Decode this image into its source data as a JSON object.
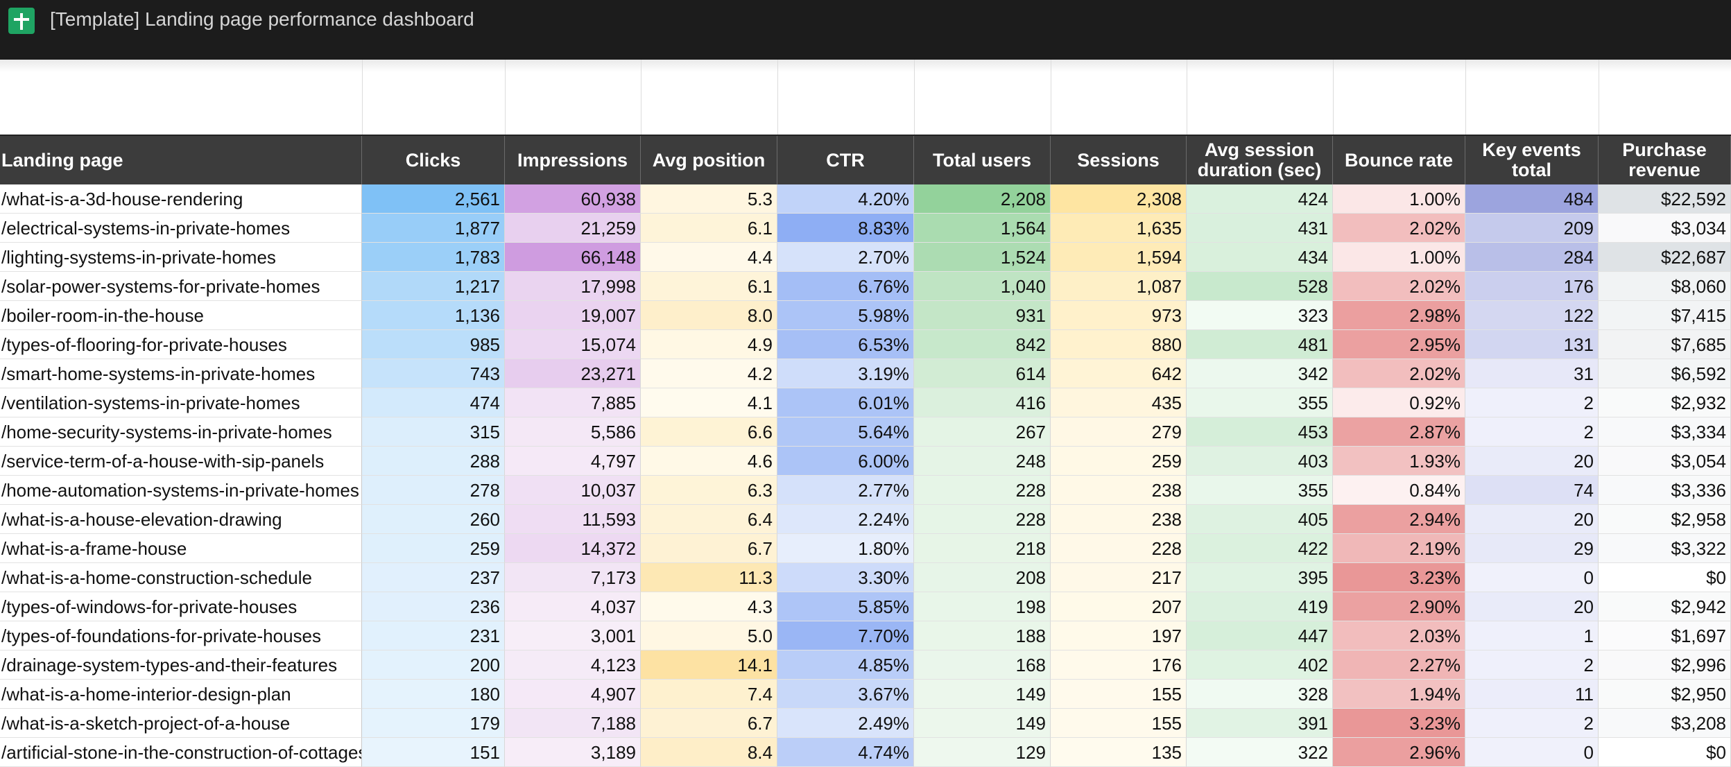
{
  "window": {
    "title": "[Template] Landing page performance dashboard",
    "app_icon": "sheets-icon"
  },
  "colors": {
    "header_bg": "#3c3c3c",
    "title_bar_bg": "#1c1c1c",
    "clicks_scale": [
      "#e8f4fd",
      "#7fc1f6"
    ],
    "impressions_scale": [
      "#f7eef8",
      "#cf9ce0"
    ],
    "avg_position_scale": [
      "#fffbee",
      "#fde2a3"
    ],
    "ctr_scale": [
      "#e7eefc",
      "#8eaef4"
    ],
    "total_users_scale": [
      "#eef8ee",
      "#93d29b"
    ],
    "sessions_scale": [
      "#fffbee",
      "#fee5a2"
    ],
    "avg_session_scale": [
      "#f3fbf4",
      "#c8e9cd"
    ],
    "bounce_rate_scale": [
      "#fdf1f1",
      "#e99797"
    ],
    "key_events_scale": [
      "#f0f1fb",
      "#9ca4de"
    ],
    "purchase_revenue_scale": [
      "#ffffff",
      "#dfe3e6"
    ]
  },
  "columns": [
    "Landing page",
    "Clicks",
    "Impressions",
    "Avg position",
    "CTR",
    "Total users",
    "Sessions",
    "Avg session duration (sec)",
    "Bounce rate",
    "Key events total",
    "Purchase revenue"
  ],
  "rows": [
    [
      "/what-is-a-3d-house-rendering",
      "2,561",
      "60,938",
      "5.3",
      "4.20%",
      "2,208",
      "2,308",
      "424",
      "1.00%",
      "484",
      "$22,592"
    ],
    [
      "/electrical-systems-in-private-homes",
      "1,877",
      "21,259",
      "6.1",
      "8.83%",
      "1,564",
      "1,635",
      "431",
      "2.02%",
      "209",
      "$3,034"
    ],
    [
      "/lighting-systems-in-private-homes",
      "1,783",
      "66,148",
      "4.4",
      "2.70%",
      "1,524",
      "1,594",
      "434",
      "1.00%",
      "284",
      "$22,687"
    ],
    [
      "/solar-power-systems-for-private-homes",
      "1,217",
      "17,998",
      "6.1",
      "6.76%",
      "1,040",
      "1,087",
      "528",
      "2.02%",
      "176",
      "$8,060"
    ],
    [
      "/boiler-room-in-the-house",
      "1,136",
      "19,007",
      "8.0",
      "5.98%",
      "931",
      "973",
      "323",
      "2.98%",
      "122",
      "$7,415"
    ],
    [
      "/types-of-flooring-for-private-houses",
      "985",
      "15,074",
      "4.9",
      "6.53%",
      "842",
      "880",
      "481",
      "2.95%",
      "131",
      "$7,685"
    ],
    [
      "/smart-home-systems-in-private-homes",
      "743",
      "23,271",
      "4.2",
      "3.19%",
      "614",
      "642",
      "342",
      "2.02%",
      "31",
      "$6,592"
    ],
    [
      "/ventilation-systems-in-private-homes",
      "474",
      "7,885",
      "4.1",
      "6.01%",
      "416",
      "435",
      "355",
      "0.92%",
      "2",
      "$2,932"
    ],
    [
      "/home-security-systems-in-private-homes",
      "315",
      "5,586",
      "6.6",
      "5.64%",
      "267",
      "279",
      "453",
      "2.87%",
      "2",
      "$3,334"
    ],
    [
      "/service-term-of-a-house-with-sip-panels",
      "288",
      "4,797",
      "4.6",
      "6.00%",
      "248",
      "259",
      "403",
      "1.93%",
      "20",
      "$3,054"
    ],
    [
      "/home-automation-systems-in-private-homes",
      "278",
      "10,037",
      "6.3",
      "2.77%",
      "228",
      "238",
      "355",
      "0.84%",
      "74",
      "$3,336"
    ],
    [
      "/what-is-a-house-elevation-drawing",
      "260",
      "11,593",
      "6.4",
      "2.24%",
      "228",
      "238",
      "405",
      "2.94%",
      "20",
      "$2,958"
    ],
    [
      "/what-is-a-frame-house",
      "259",
      "14,372",
      "6.7",
      "1.80%",
      "218",
      "228",
      "422",
      "2.19%",
      "29",
      "$3,322"
    ],
    [
      "/what-is-a-home-construction-schedule",
      "237",
      "7,173",
      "11.3",
      "3.30%",
      "208",
      "217",
      "395",
      "3.23%",
      "0",
      "$0"
    ],
    [
      "/types-of-windows-for-private-houses",
      "236",
      "4,037",
      "4.3",
      "5.85%",
      "198",
      "207",
      "419",
      "2.90%",
      "20",
      "$2,942"
    ],
    [
      "/types-of-foundations-for-private-houses",
      "231",
      "3,001",
      "5.0",
      "7.70%",
      "188",
      "197",
      "447",
      "2.03%",
      "1",
      "$1,697"
    ],
    [
      "/drainage-system-types-and-their-features",
      "200",
      "4,123",
      "14.1",
      "4.85%",
      "168",
      "176",
      "402",
      "2.27%",
      "2",
      "$2,996"
    ],
    [
      "/what-is-a-home-interior-design-plan",
      "180",
      "4,907",
      "7.4",
      "3.67%",
      "149",
      "155",
      "328",
      "1.94%",
      "11",
      "$2,950"
    ],
    [
      "/what-is-a-sketch-project-of-a-house",
      "179",
      "7,188",
      "6.7",
      "2.49%",
      "149",
      "155",
      "391",
      "3.23%",
      "2",
      "$3,208"
    ],
    [
      "/artificial-stone-in-the-construction-of-cottages",
      "151",
      "3,189",
      "8.4",
      "4.74%",
      "129",
      "135",
      "322",
      "2.96%",
      "0",
      "$0"
    ]
  ]
}
